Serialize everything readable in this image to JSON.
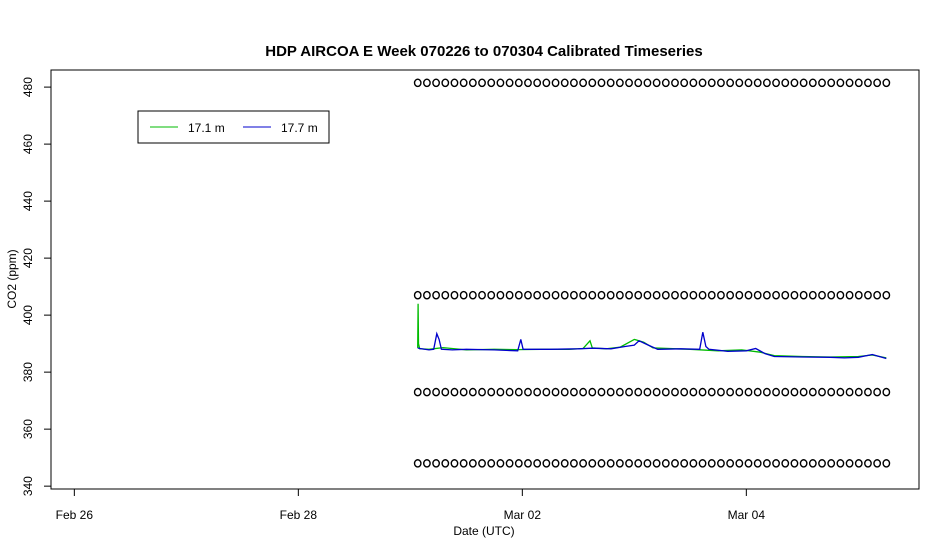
{
  "chart_data": {
    "type": "line",
    "title": "HDP AIRCOA E  Week 070226 to 070304  Calibrated Timeseries",
    "xlabel": "Date (UTC)",
    "ylabel": "CO2 (ppm)",
    "x_ticks": [
      {
        "x": "2007-02-26",
        "label": "Feb 26"
      },
      {
        "x": "2007-02-28",
        "label": "Feb 28"
      },
      {
        "x": "2007-03-02",
        "label": "Mar 02"
      },
      {
        "x": "2007-03-04",
        "label": "Mar 04"
      }
    ],
    "y_ticks": [
      340,
      360,
      380,
      400,
      420,
      440,
      460,
      480
    ],
    "xlim": [
      "2007-02-25T19:00",
      "2007-03-05T13:00"
    ],
    "ylim": [
      339,
      486
    ],
    "legend_position": "top-left",
    "series": [
      {
        "name": "17.1 m",
        "color": "#00bb00",
        "points": [
          [
            "2007-03-01T01:35",
            388.5
          ],
          [
            "2007-03-01T01:40",
            404.0
          ],
          [
            "2007-03-01T01:45",
            390.0
          ],
          [
            "2007-03-01T02:00",
            388.2
          ],
          [
            "2007-03-01T04:00",
            388.0
          ],
          [
            "2007-03-01T07:00",
            388.6
          ],
          [
            "2007-03-01T12:00",
            387.8
          ],
          [
            "2007-03-01T18:00",
            388.0
          ],
          [
            "2007-03-01T23:00",
            387.9
          ],
          [
            "2007-03-02T04:00",
            388.0
          ],
          [
            "2007-03-02T10:00",
            388.0
          ],
          [
            "2007-03-02T13:00",
            388.3
          ],
          [
            "2007-03-02T14:30",
            391.0
          ],
          [
            "2007-03-02T15:00",
            388.5
          ],
          [
            "2007-03-02T18:00",
            388.2
          ],
          [
            "2007-03-02T21:00",
            388.8
          ],
          [
            "2007-03-03T00:00",
            391.5
          ],
          [
            "2007-03-03T02:00",
            390.5
          ],
          [
            "2007-03-03T04:00",
            388.5
          ],
          [
            "2007-03-03T09:00",
            388.2
          ],
          [
            "2007-03-03T12:00",
            388.0
          ],
          [
            "2007-03-03T18:00",
            387.5
          ],
          [
            "2007-03-03T23:00",
            387.8
          ],
          [
            "2007-03-04T03:00",
            387.0
          ],
          [
            "2007-03-04T06:00",
            385.8
          ],
          [
            "2007-03-04T12:00",
            385.5
          ],
          [
            "2007-03-04T18:00",
            385.3
          ],
          [
            "2007-03-05T00:00",
            385.5
          ],
          [
            "2007-03-05T03:00",
            386.0
          ],
          [
            "2007-03-05T06:00",
            385.0
          ]
        ]
      },
      {
        "name": "17.7 m",
        "color": "#0000cc",
        "points": [
          [
            "2007-03-01T01:35",
            388.5
          ],
          [
            "2007-03-01T02:00",
            388.3
          ],
          [
            "2007-03-01T04:00",
            387.8
          ],
          [
            "2007-03-01T05:00",
            388.0
          ],
          [
            "2007-03-01T05:40",
            393.5
          ],
          [
            "2007-03-01T06:10",
            391.5
          ],
          [
            "2007-03-01T06:40",
            388.0
          ],
          [
            "2007-03-01T09:00",
            387.8
          ],
          [
            "2007-03-01T12:00",
            388.0
          ],
          [
            "2007-03-01T18:00",
            387.8
          ],
          [
            "2007-03-01T23:00",
            387.5
          ],
          [
            "2007-03-01T23:40",
            391.5
          ],
          [
            "2007-03-02T00:10",
            388.0
          ],
          [
            "2007-03-02T06:00",
            388.0
          ],
          [
            "2007-03-02T12:00",
            388.2
          ],
          [
            "2007-03-02T15:00",
            388.4
          ],
          [
            "2007-03-02T19:00",
            388.2
          ],
          [
            "2007-03-02T22:00",
            389.0
          ],
          [
            "2007-03-03T00:00",
            389.5
          ],
          [
            "2007-03-03T01:00",
            391.0
          ],
          [
            "2007-03-03T03:00",
            389.5
          ],
          [
            "2007-03-03T05:00",
            388.0
          ],
          [
            "2007-03-03T10:00",
            388.2
          ],
          [
            "2007-03-03T14:00",
            388.0
          ],
          [
            "2007-03-03T14:40",
            394.0
          ],
          [
            "2007-03-03T15:20",
            389.0
          ],
          [
            "2007-03-03T16:00",
            388.0
          ],
          [
            "2007-03-03T20:00",
            387.3
          ],
          [
            "2007-03-04T00:00",
            387.5
          ],
          [
            "2007-03-04T02:00",
            388.3
          ],
          [
            "2007-03-04T04:00",
            386.5
          ],
          [
            "2007-03-04T06:00",
            385.5
          ],
          [
            "2007-03-04T12:00",
            385.3
          ],
          [
            "2007-03-04T18:00",
            385.2
          ],
          [
            "2007-03-04T21:00",
            385.0
          ],
          [
            "2007-03-05T00:00",
            385.2
          ],
          [
            "2007-03-05T03:00",
            386.2
          ],
          [
            "2007-03-05T06:00",
            384.8
          ]
        ]
      }
    ],
    "marker_rows": [
      {
        "y": 481.5,
        "x_start": "2007-03-01T01:35",
        "x_end": "2007-03-05T06:00",
        "count": 52
      },
      {
        "y": 407,
        "x_start": "2007-03-01T01:35",
        "x_end": "2007-03-05T06:00",
        "count": 52
      },
      {
        "y": 373,
        "x_start": "2007-03-01T01:35",
        "x_end": "2007-03-05T06:00",
        "count": 52
      },
      {
        "y": 348,
        "x_start": "2007-03-01T01:35",
        "x_end": "2007-03-05T06:00",
        "count": 52
      }
    ]
  }
}
